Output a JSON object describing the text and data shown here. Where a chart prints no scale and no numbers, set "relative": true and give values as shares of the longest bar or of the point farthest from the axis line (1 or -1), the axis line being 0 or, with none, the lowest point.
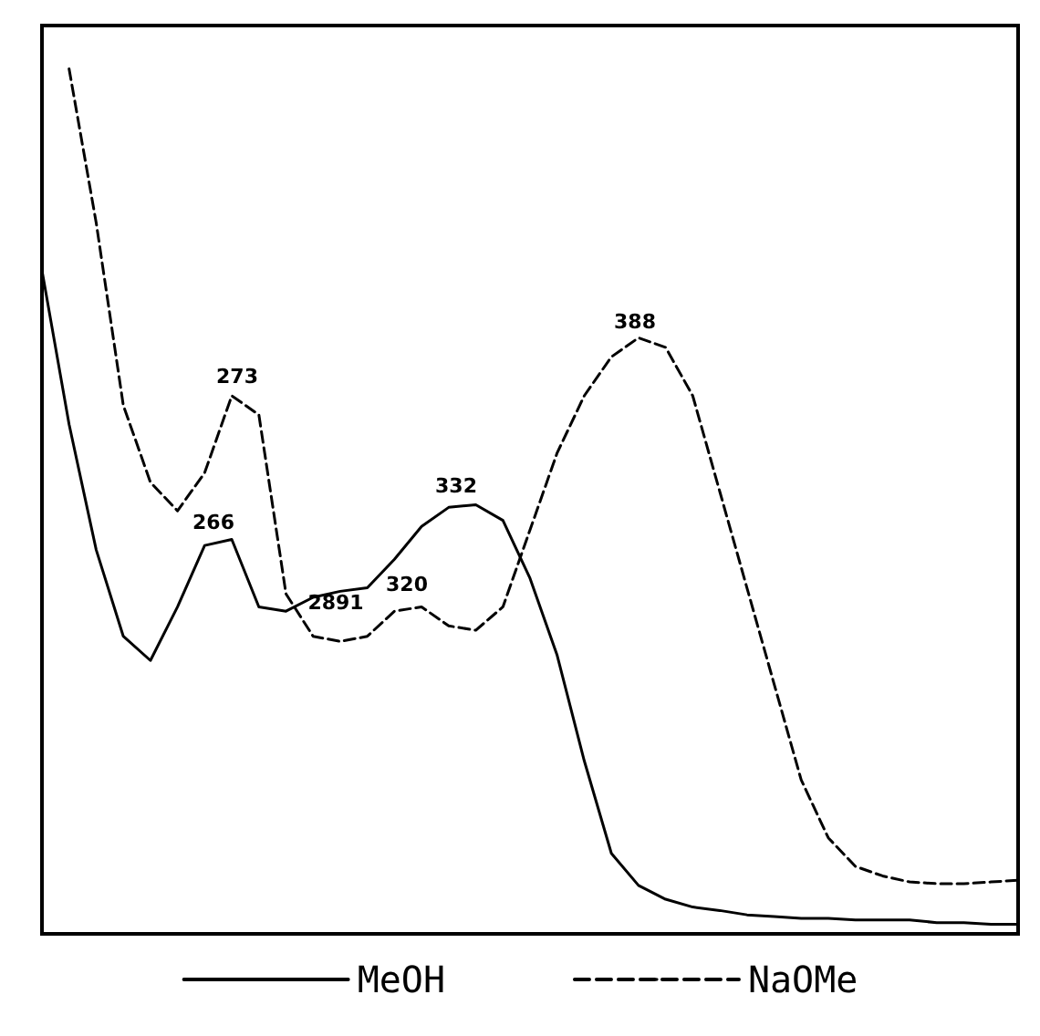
{
  "chart_data": {
    "type": "line",
    "relative": true,
    "legend": "bottom",
    "marker": "none",
    "categories": [
      null,
      null,
      null,
      null,
      null,
      null,
      null,
      null,
      null,
      null,
      null,
      null,
      null,
      null,
      null,
      null,
      null,
      null,
      null,
      null,
      null,
      null,
      null,
      null,
      null,
      null,
      null,
      null,
      null,
      null,
      null,
      null,
      null,
      null,
      null,
      null,
      null
    ],
    "annotations": [
      "266",
      "2891",
      "332",
      "273",
      "320",
      "388"
    ],
    "series": [
      {
        "name": "MeOH",
        "color": "#000000",
        "line_style": "solid",
        "values": [
          0.767,
          0.589,
          0.444,
          0.344,
          0.316,
          0.378,
          0.449,
          0.456,
          0.378,
          0.373,
          0.389,
          0.396,
          0.4,
          0.433,
          0.471,
          0.493,
          0.496,
          0.478,
          0.411,
          0.322,
          0.2,
          0.093,
          0.056,
          0.04,
          0.031,
          0.027,
          0.022,
          0.02,
          0.018,
          0.018,
          0.016,
          0.016,
          0.016,
          0.013,
          0.013,
          0.011,
          0.011
        ]
      },
      {
        "name": "NaOMe",
        "color": "#000000",
        "line_style": "dashed",
        "values": [
          null,
          1,
          0.822,
          0.611,
          0.522,
          0.489,
          0.533,
          0.622,
          0.6,
          0.393,
          0.344,
          0.338,
          0.344,
          0.373,
          0.378,
          0.356,
          0.351,
          0.378,
          0.467,
          0.556,
          0.622,
          0.667,
          0.689,
          0.678,
          0.622,
          0.511,
          0.4,
          0.289,
          0.178,
          0.111,
          0.078,
          0.067,
          0.06,
          0.058,
          0.058,
          0.06,
          0.062
        ]
      }
    ]
  }
}
